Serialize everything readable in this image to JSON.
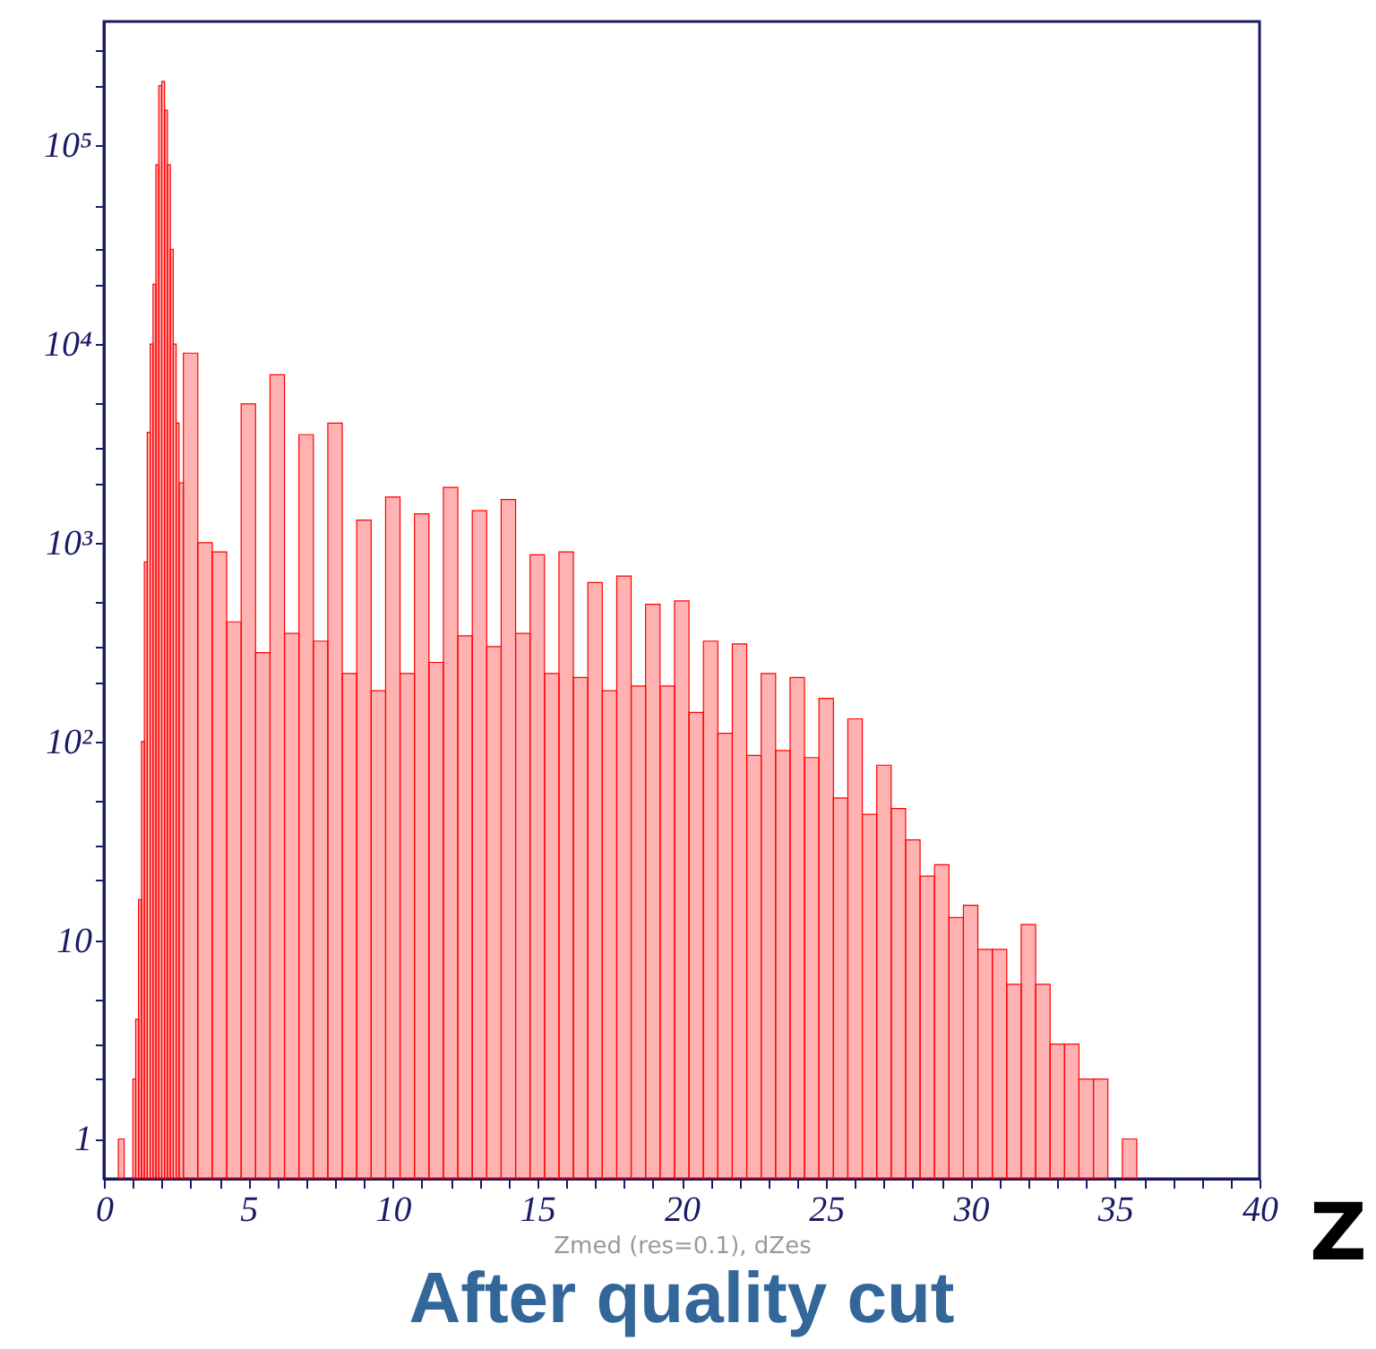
{
  "chart_data": {
    "type": "histogram",
    "title": "After quality cut",
    "xlabel": "Zmed (res=0.1), dZes",
    "annotations": [
      "Z"
    ],
    "bins": [
      0.5,
      0.7,
      1.0,
      1.1,
      1.2,
      1.3,
      1.4,
      1.5,
      1.6,
      1.7,
      1.8,
      1.9,
      2.0,
      2.1,
      2.2,
      2.3,
      2.4,
      2.5,
      2.6,
      2.75,
      3.25,
      3.75,
      4.25,
      4.75,
      5.25,
      5.75,
      6.25,
      6.75,
      7.25,
      7.75,
      8.25,
      8.75,
      9.25,
      9.75,
      10.25,
      10.75,
      11.25,
      11.75,
      12.25,
      12.75,
      13.25,
      13.75,
      14.25,
      14.75,
      15.25,
      15.75,
      16.25,
      16.75,
      17.25,
      17.75,
      18.25,
      18.75,
      19.25,
      19.75,
      20.25,
      20.75,
      21.25,
      21.75,
      22.25,
      22.75,
      23.25,
      23.75,
      24.25,
      24.75,
      25.25,
      25.75,
      26.25,
      26.75,
      27.25,
      27.75,
      28.25,
      28.75,
      29.25,
      29.75,
      30.25,
      30.75,
      31.25,
      31.75,
      32.25,
      32.75,
      33.25,
      33.75,
      34.25,
      34.75,
      35.25,
      35.75
    ],
    "values": [
      1,
      null,
      2,
      4,
      16,
      100,
      800,
      3600,
      10000,
      20000,
      80000,
      200000,
      210000,
      150000,
      80000,
      30000,
      10000,
      4000,
      2000,
      9000,
      1000,
      900,
      400,
      5000,
      280,
      7000,
      350,
      3500,
      320,
      4000,
      220,
      1300,
      180,
      1700,
      220,
      1400,
      250,
      1900,
      340,
      1450,
      300,
      1650,
      350,
      870,
      220,
      900,
      210,
      630,
      180,
      680,
      190,
      490,
      190,
      510,
      140,
      320,
      110,
      310,
      85,
      220,
      90,
      210,
      83,
      165,
      52,
      130,
      43,
      76,
      46,
      32,
      21,
      24,
      13,
      15,
      9,
      9,
      6,
      12,
      6,
      3,
      3,
      2,
      2,
      null,
      1
    ],
    "color": "#ff0000",
    "log": true,
    "xlim": [
      0,
      40
    ],
    "xticks": [
      0,
      {
        "value": 1,
        "label": null
      },
      {
        "value": 2,
        "label": null
      },
      {
        "value": 3,
        "label": null
      },
      {
        "value": 4,
        "label": null
      },
      5,
      {
        "value": 6,
        "label": null
      },
      {
        "value": 7,
        "label": null
      },
      {
        "value": 8,
        "label": null
      },
      {
        "value": 9,
        "label": null
      },
      10,
      {
        "value": 11,
        "label": null
      },
      {
        "value": 12,
        "label": null
      },
      {
        "value": 13,
        "label": null
      },
      {
        "value": 14,
        "label": null
      },
      15,
      {
        "value": 16,
        "label": null
      },
      {
        "value": 17,
        "label": null
      },
      {
        "value": 18,
        "label": null
      },
      {
        "value": 19,
        "label": null
      },
      20,
      {
        "value": 21,
        "label": null
      },
      {
        "value": 22,
        "label": null
      },
      {
        "value": 23,
        "label": null
      },
      {
        "value": 24,
        "label": null
      },
      25,
      {
        "value": 26,
        "label": null
      },
      {
        "value": 27,
        "label": null
      },
      {
        "value": 28,
        "label": null
      },
      {
        "value": 29,
        "label": null
      },
      30,
      {
        "value": 31,
        "label": null
      },
      {
        "value": 32,
        "label": null
      },
      {
        "value": 33,
        "label": null
      },
      {
        "value": 34,
        "label": null
      },
      35,
      {
        "value": 36,
        "label": null
      },
      {
        "value": 37,
        "label": null
      },
      {
        "value": 38,
        "label": null
      },
      {
        "value": 39,
        "label": null
      },
      40
    ],
    "ylim": [
      0.63,
      420000
    ],
    "yticks": [
      1,
      {
        "value": 2,
        "label": null
      },
      {
        "value": 3,
        "label": null
      },
      {
        "value": 5,
        "label": null
      },
      10,
      {
        "value": 20,
        "label": null
      },
      {
        "value": 30,
        "label": null
      },
      {
        "value": 50,
        "label": null
      },
      {
        "value": 100,
        "label": "10²"
      },
      {
        "value": 200,
        "label": null
      },
      {
        "value": 300,
        "label": null
      },
      {
        "value": 500,
        "label": null
      },
      {
        "value": 1000,
        "label": "10³"
      },
      {
        "value": 2000,
        "label": null
      },
      {
        "value": 3000,
        "label": null
      },
      {
        "value": 5000,
        "label": null
      },
      {
        "value": 10000,
        "label": "10⁴"
      },
      {
        "value": 20000,
        "label": null
      },
      {
        "value": 30000,
        "label": null
      },
      {
        "value": 50000,
        "label": null
      },
      {
        "value": 100000,
        "label": "10⁵"
      },
      {
        "value": 200000,
        "label": null
      },
      {
        "value": 300000,
        "label": null
      }
    ],
    "grid": false
  }
}
